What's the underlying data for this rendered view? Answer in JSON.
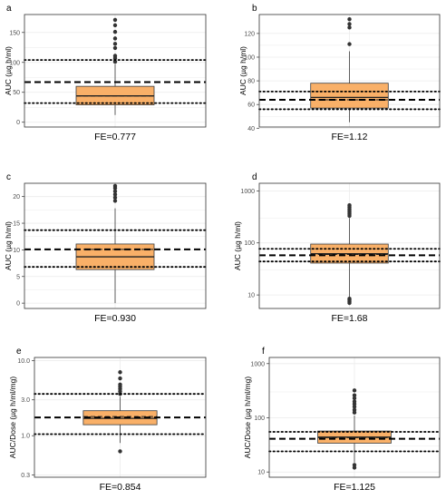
{
  "colors": {
    "box_fill": "#f9b068",
    "box_stroke": "#3a3a3a",
    "grid": "#ebebeb",
    "frame": "#333333",
    "outlier": "#333333",
    "reference_line": "#000000"
  },
  "chart_data": [
    {
      "panel": "a",
      "type": "box",
      "scale": "linear",
      "ylabel": "AUC (µg h/ml)",
      "xlabel": "FE=0.777",
      "ylim": [
        -8,
        180
      ],
      "yticks": [
        0,
        50,
        100,
        150
      ],
      "box": {
        "whisker_low": 12,
        "q1": 29,
        "median": 44,
        "mean": 44,
        "q3": 60,
        "whisker_high": 97
      },
      "outliers": [
        101,
        107,
        111,
        124,
        131,
        140,
        151,
        162,
        171
      ],
      "reference": {
        "dashed": 67,
        "dotted": [
          32,
          104
        ]
      },
      "grid": true
    },
    {
      "panel": "b",
      "type": "box",
      "scale": "linear",
      "ylabel": "AUC (µg h/ml)",
      "xlabel": "FE=1.12",
      "ylim": [
        41,
        136
      ],
      "yticks": [
        40,
        60,
        80,
        100,
        120
      ],
      "box": {
        "whisker_low": 45,
        "q1": 57,
        "median": 66,
        "mean": 64,
        "q3": 78,
        "whisker_high": 105
      },
      "outliers": [
        111,
        125,
        128,
        132
      ],
      "reference": {
        "dashed": 64,
        "dotted": [
          56,
          71
        ]
      },
      "grid": true
    },
    {
      "panel": "c",
      "type": "box",
      "scale": "linear",
      "ylabel": "AUC (µg h/ml)",
      "xlabel": "FE=0.930",
      "ylim": [
        -1,
        22.5
      ],
      "yticks": [
        0,
        5,
        10,
        15,
        20
      ],
      "box": {
        "whisker_low": 0,
        "q1": 6.3,
        "median": 8.7,
        "mean": 10.1,
        "q3": 11.1,
        "whisker_high": 17.8
      },
      "outliers": [
        19.2,
        19.8,
        20.4,
        21.0,
        21.6,
        22.0
      ],
      "reference": {
        "dashed": 10.1,
        "dotted": [
          6.8,
          13.7
        ]
      },
      "grid": true
    },
    {
      "panel": "d",
      "type": "box",
      "scale": "log",
      "ylabel": "AUC (µg h/ml)",
      "xlabel": "FE=1.68",
      "ylim": [
        5.5,
        1400
      ],
      "yticks": [
        10,
        100,
        1000
      ],
      "box": {
        "whisker_low": 9,
        "q1": 41,
        "median": 62,
        "mean": 60,
        "q3": 95,
        "whisker_high": 300
      },
      "outliers": [
        7,
        7.5,
        8,
        8.5,
        330,
        360,
        390,
        420,
        450,
        490,
        530
      ],
      "reference": {
        "dashed": 58,
        "dotted": [
          44,
          77
        ]
      },
      "grid": true
    },
    {
      "panel": "e",
      "type": "box",
      "scale": "log",
      "ylabel": "AUC/Dose (µg h/ml/mg)",
      "xlabel": "FE=0.854",
      "ylim": [
        0.28,
        11
      ],
      "yticks": [
        0.3,
        1.0,
        3.0,
        10.0
      ],
      "ytick_labels": [
        "0.3",
        "1.0",
        "3.0",
        "10.0"
      ],
      "box": {
        "whisker_low": 0.8,
        "q1": 1.4,
        "median": 1.7,
        "mean": 1.8,
        "q3": 2.15,
        "whisker_high": 3.3
      },
      "outliers": [
        0.62,
        3.6,
        3.9,
        4.2,
        4.5,
        4.8,
        5.8,
        7.0
      ],
      "reference": {
        "dashed": 1.75,
        "dotted": [
          1.05,
          3.6
        ]
      },
      "grid": true
    },
    {
      "panel": "f",
      "type": "box",
      "scale": "log",
      "ylabel": "AUC/Dose (µg h/ml/mg)",
      "xlabel": "FE=1.125",
      "ylim": [
        8,
        1300
      ],
      "yticks": [
        10,
        100,
        1000
      ],
      "box": {
        "whisker_low": 15,
        "q1": 34,
        "median": 44,
        "mean": 43,
        "q3": 57,
        "whisker_high": 110
      },
      "outliers": [
        12,
        13.5,
        125,
        140,
        160,
        180,
        200,
        230,
        260,
        320
      ],
      "reference": {
        "dashed": 41,
        "dotted": [
          24,
          55
        ]
      },
      "grid": true
    }
  ]
}
